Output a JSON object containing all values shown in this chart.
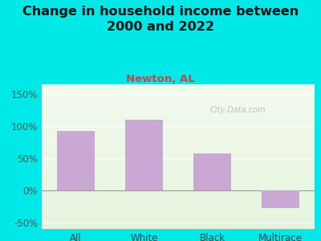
{
  "title": "Change in household income between\n2000 and 2022",
  "subtitle": "Newton, AL",
  "categories": [
    "All",
    "White",
    "Black",
    "Multirace"
  ],
  "values": [
    93,
    110,
    57,
    -27
  ],
  "bar_color": "#c9a8d4",
  "title_fontsize": 11.5,
  "subtitle_fontsize": 9.5,
  "subtitle_color": "#cc4444",
  "title_color": "#111111",
  "background_outer": "#00e8e8",
  "ylim": [
    -60,
    165
  ],
  "yticks": [
    -50,
    0,
    50,
    100,
    150
  ],
  "xlabel_color": "#444444",
  "tick_color": "#555555",
  "watermark": "City-Data.com"
}
